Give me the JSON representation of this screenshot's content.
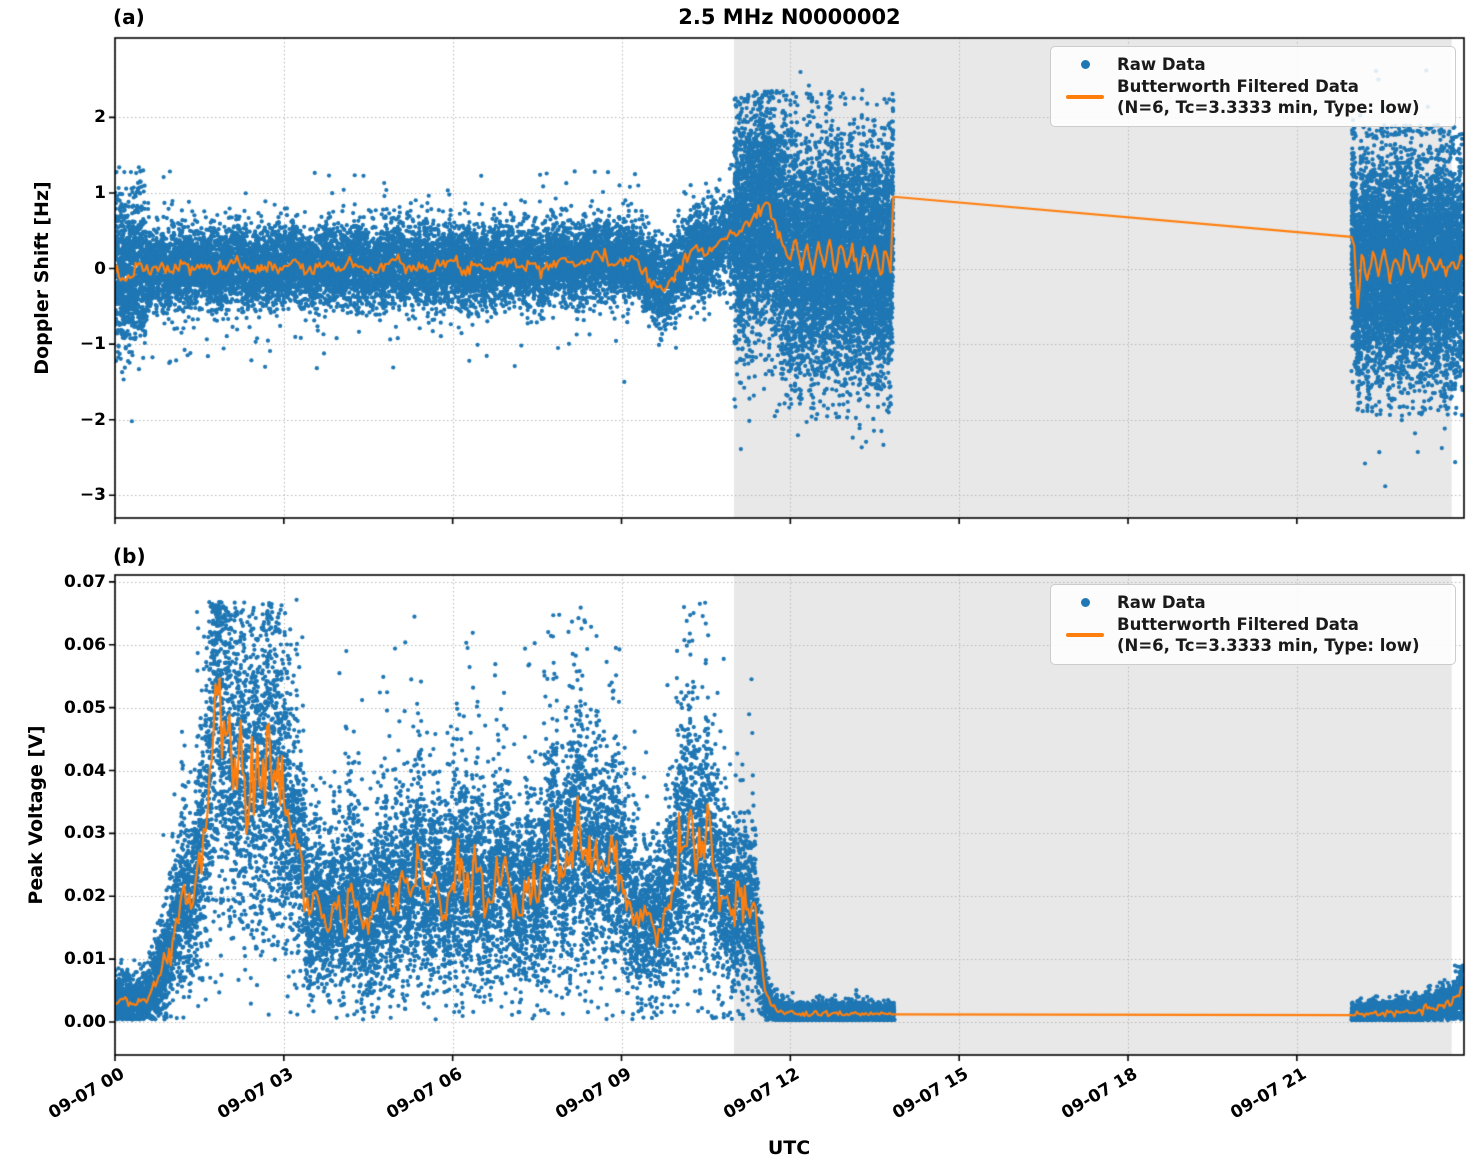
{
  "figure": {
    "title": "2.5 MHz N0000002",
    "xlabel": "UTC",
    "xticks": [
      {
        "v": 0,
        "label": "09-07 00"
      },
      {
        "v": 3,
        "label": "09-07 03"
      },
      {
        "v": 6,
        "label": "09-07 06"
      },
      {
        "v": 9,
        "label": "09-07 09"
      },
      {
        "v": 12,
        "label": "09-07 12"
      },
      {
        "v": 15,
        "label": "09-07 15"
      },
      {
        "v": 18,
        "label": "09-07 18"
      },
      {
        "v": 21,
        "label": "09-07 21"
      }
    ],
    "xlim": [
      0,
      23.97
    ]
  },
  "legend": {
    "raw_label": "Raw Data",
    "filtered_label": "Butterworth Filtered Data",
    "filtered_sublabel": "(N=6, Tc=3.3333 min, Type: low)"
  },
  "colors": {
    "raw": "#1f77b4",
    "filtered": "#ff7f0e",
    "shade": "#e8e8e8",
    "grid": "#b5b5b5",
    "spine": "#000000"
  },
  "chart_data": [
    {
      "id": "a",
      "panel_label": "(a)",
      "type": "scatter",
      "ylabel": "Doppler Shift [Hz]",
      "ylim": [
        -3.3,
        3.05
      ],
      "yticks": [
        {
          "v": 2,
          "label": "2"
        },
        {
          "v": 1,
          "label": "1"
        },
        {
          "v": 0,
          "label": "0"
        },
        {
          "v": -1,
          "label": "−1"
        },
        {
          "v": -2,
          "label": "−2"
        },
        {
          "v": -3,
          "label": "−3"
        }
      ],
      "shade_span": [
        11.0,
        23.75
      ],
      "data_gap": [
        13.83,
        21.97
      ],
      "line_noise": {
        "abs": 0.045,
        "rel": 0.0
      },
      "filtered": [
        [
          0,
          -0.07
        ],
        [
          0.2,
          -0.16
        ],
        [
          0.4,
          0.04
        ],
        [
          0.6,
          -0.06
        ],
        [
          0.8,
          0.03
        ],
        [
          1.0,
          -0.04
        ],
        [
          1.2,
          0.06
        ],
        [
          1.4,
          -0.02
        ],
        [
          1.6,
          0.05
        ],
        [
          1.8,
          -0.06
        ],
        [
          2.0,
          0.02
        ],
        [
          2.2,
          0.09
        ],
        [
          2.4,
          -0.04
        ],
        [
          2.6,
          0.05
        ],
        [
          2.8,
          -0.02
        ],
        [
          3.0,
          0.03
        ],
        [
          3.2,
          0.12
        ],
        [
          3.4,
          -0.06
        ],
        [
          3.6,
          0.02
        ],
        [
          3.8,
          0.08
        ],
        [
          4.0,
          -0.03
        ],
        [
          4.2,
          0.1
        ],
        [
          4.4,
          0.02
        ],
        [
          4.6,
          -0.05
        ],
        [
          4.8,
          0.06
        ],
        [
          5.0,
          0.12
        ],
        [
          5.2,
          0.02
        ],
        [
          5.4,
          0.08
        ],
        [
          5.6,
          -0.04
        ],
        [
          5.8,
          0.05
        ],
        [
          6.0,
          0.1
        ],
        [
          6.2,
          -0.02
        ],
        [
          6.4,
          0.06
        ],
        [
          6.6,
          0.0
        ],
        [
          6.8,
          0.08
        ],
        [
          7.0,
          0.12
        ],
        [
          7.2,
          0.02
        ],
        [
          7.4,
          0.07
        ],
        [
          7.6,
          0.0
        ],
        [
          7.8,
          0.1
        ],
        [
          8.0,
          0.14
        ],
        [
          8.2,
          0.04
        ],
        [
          8.4,
          0.12
        ],
        [
          8.6,
          0.18
        ],
        [
          8.8,
          0.05
        ],
        [
          9.0,
          0.12
        ],
        [
          9.2,
          0.16
        ],
        [
          9.4,
          -0.02
        ],
        [
          9.6,
          -0.22
        ],
        [
          9.75,
          -0.3
        ],
        [
          9.9,
          -0.12
        ],
        [
          10.1,
          0.12
        ],
        [
          10.3,
          0.28
        ],
        [
          10.5,
          0.18
        ],
        [
          10.7,
          0.32
        ],
        [
          10.9,
          0.44
        ],
        [
          11.1,
          0.5
        ],
        [
          11.3,
          0.62
        ],
        [
          11.5,
          0.8
        ],
        [
          11.6,
          0.87
        ],
        [
          11.75,
          0.55
        ],
        [
          11.9,
          0.28
        ],
        [
          12.0,
          0.12
        ],
        [
          12.1,
          0.38
        ],
        [
          12.2,
          -0.02
        ],
        [
          12.3,
          0.32
        ],
        [
          12.4,
          -0.08
        ],
        [
          12.5,
          0.35
        ],
        [
          12.6,
          0.02
        ],
        [
          12.7,
          0.38
        ],
        [
          12.8,
          -0.05
        ],
        [
          12.9,
          0.3
        ],
        [
          13.0,
          0.02
        ],
        [
          13.1,
          0.33
        ],
        [
          13.2,
          -0.06
        ],
        [
          13.3,
          0.28
        ],
        [
          13.4,
          0.0
        ],
        [
          13.5,
          0.3
        ],
        [
          13.6,
          -0.08
        ],
        [
          13.7,
          0.22
        ],
        [
          13.78,
          -0.05
        ],
        [
          13.83,
          0.95
        ],
        [
          21.97,
          0.42
        ],
        [
          22.02,
          0.3
        ],
        [
          22.08,
          -0.52
        ],
        [
          22.15,
          0.18
        ],
        [
          22.25,
          -0.15
        ],
        [
          22.35,
          0.22
        ],
        [
          22.45,
          -0.1
        ],
        [
          22.55,
          0.25
        ],
        [
          22.65,
          -0.18
        ],
        [
          22.75,
          0.12
        ],
        [
          22.85,
          -0.08
        ],
        [
          22.95,
          0.2
        ],
        [
          23.05,
          -0.05
        ],
        [
          23.15,
          0.18
        ],
        [
          23.25,
          -0.12
        ],
        [
          23.35,
          0.15
        ],
        [
          23.45,
          -0.02
        ],
        [
          23.55,
          0.12
        ],
        [
          23.65,
          -0.1
        ],
        [
          23.75,
          0.08
        ],
        [
          23.85,
          0.0
        ],
        [
          23.95,
          0.12
        ]
      ],
      "raw_segments": [
        {
          "t0": 0,
          "t1": 0.55,
          "n": 900,
          "sigma_abs": 0.5,
          "clip": [
            -1.7,
            1.35
          ]
        },
        {
          "t0": 0.55,
          "t1": 9.6,
          "n": 11000,
          "sigma_abs": 0.26,
          "clip": [
            -1.32,
            1.3
          ]
        },
        {
          "t0": 0.55,
          "t1": 9.6,
          "n": 380,
          "sigma_abs": 0.58,
          "clip": [
            -1.32,
            1.3
          ]
        },
        {
          "t0": 9.6,
          "t1": 11.0,
          "n": 1600,
          "sigma_abs": 0.3,
          "clip": [
            -1.2,
            1.4
          ]
        },
        {
          "t0": 11.0,
          "t1": 13.83,
          "n": 8500,
          "sigma_abs": 0.78,
          "clip": [
            -2.4,
            2.35
          ]
        },
        {
          "t0": 21.97,
          "t1": 23.95,
          "n": 6500,
          "sigma_abs": 0.72,
          "clip": [
            -1.95,
            1.9
          ]
        },
        {
          "t0": 21.97,
          "t1": 23.95,
          "n": 180,
          "sigma_abs": 1.15,
          "clip": [
            -2.6,
            2.62
          ]
        }
      ],
      "outliers": [
        [
          0.3,
          -2.02
        ],
        [
          9.05,
          -1.5
        ],
        [
          12.18,
          2.6
        ],
        [
          12.33,
          2.42
        ],
        [
          13.28,
          2.36
        ],
        [
          22.45,
          2.5
        ],
        [
          22.57,
          -2.88
        ],
        [
          23.1,
          -2.18
        ],
        [
          23.3,
          2.62
        ]
      ]
    },
    {
      "id": "b",
      "panel_label": "(b)",
      "type": "scatter",
      "ylabel": "Peak Voltage [V]",
      "ylim": [
        -0.00525,
        0.0711
      ],
      "yticks": [
        {
          "v": 0.07,
          "label": "0.07"
        },
        {
          "v": 0.06,
          "label": "0.06"
        },
        {
          "v": 0.05,
          "label": "0.05"
        },
        {
          "v": 0.04,
          "label": "0.04"
        },
        {
          "v": 0.03,
          "label": "0.03"
        },
        {
          "v": 0.02,
          "label": "0.02"
        },
        {
          "v": 0.01,
          "label": "0.01"
        },
        {
          "v": 0.0,
          "label": "0.00"
        }
      ],
      "shade_span": [
        11.0,
        23.75
      ],
      "data_gap": [
        13.83,
        21.97
      ],
      "line_noise": {
        "abs": 0.0001,
        "rel": 0.09
      },
      "filtered": [
        [
          0,
          0.003
        ],
        [
          0.15,
          0.0036
        ],
        [
          0.3,
          0.0028
        ],
        [
          0.45,
          0.0033
        ],
        [
          0.6,
          0.004
        ],
        [
          0.75,
          0.0065
        ],
        [
          0.9,
          0.01
        ],
        [
          1.05,
          0.014
        ],
        [
          1.2,
          0.021
        ],
        [
          1.35,
          0.018
        ],
        [
          1.5,
          0.027
        ],
        [
          1.65,
          0.034
        ],
        [
          1.75,
          0.046
        ],
        [
          1.82,
          0.052
        ],
        [
          1.9,
          0.042
        ],
        [
          2.0,
          0.046
        ],
        [
          2.1,
          0.037
        ],
        [
          2.2,
          0.043
        ],
        [
          2.3,
          0.039
        ],
        [
          2.4,
          0.036
        ],
        [
          2.5,
          0.04
        ],
        [
          2.6,
          0.037
        ],
        [
          2.7,
          0.047
        ],
        [
          2.8,
          0.037
        ],
        [
          2.9,
          0.042
        ],
        [
          3.0,
          0.035
        ],
        [
          3.1,
          0.032
        ],
        [
          3.2,
          0.03
        ],
        [
          3.3,
          0.027
        ],
        [
          3.45,
          0.017
        ],
        [
          3.6,
          0.02
        ],
        [
          3.75,
          0.015
        ],
        [
          3.9,
          0.019
        ],
        [
          4.05,
          0.016
        ],
        [
          4.2,
          0.022
        ],
        [
          4.35,
          0.017
        ],
        [
          4.5,
          0.014
        ],
        [
          4.65,
          0.019
        ],
        [
          4.8,
          0.022
        ],
        [
          4.95,
          0.017
        ],
        [
          5.1,
          0.024
        ],
        [
          5.25,
          0.02
        ],
        [
          5.4,
          0.026
        ],
        [
          5.55,
          0.019
        ],
        [
          5.7,
          0.023
        ],
        [
          5.85,
          0.017
        ],
        [
          6.0,
          0.022
        ],
        [
          6.15,
          0.026
        ],
        [
          6.3,
          0.021
        ],
        [
          6.45,
          0.024
        ],
        [
          6.6,
          0.018
        ],
        [
          6.75,
          0.022
        ],
        [
          6.9,
          0.025
        ],
        [
          7.05,
          0.02
        ],
        [
          7.2,
          0.017
        ],
        [
          7.35,
          0.023
        ],
        [
          7.5,
          0.019
        ],
        [
          7.65,
          0.025
        ],
        [
          7.8,
          0.029
        ],
        [
          7.95,
          0.023
        ],
        [
          8.1,
          0.027
        ],
        [
          8.25,
          0.032
        ],
        [
          8.4,
          0.025
        ],
        [
          8.55,
          0.029
        ],
        [
          8.7,
          0.024
        ],
        [
          8.85,
          0.028
        ],
        [
          9.0,
          0.023
        ],
        [
          9.15,
          0.019
        ],
        [
          9.3,
          0.015
        ],
        [
          9.45,
          0.017
        ],
        [
          9.6,
          0.014
        ],
        [
          9.75,
          0.017
        ],
        [
          9.9,
          0.021
        ],
        [
          10.05,
          0.027
        ],
        [
          10.2,
          0.033
        ],
        [
          10.35,
          0.026
        ],
        [
          10.5,
          0.03
        ],
        [
          10.65,
          0.024
        ],
        [
          10.8,
          0.02
        ],
        [
          10.95,
          0.017
        ],
        [
          11.1,
          0.02
        ],
        [
          11.25,
          0.018
        ],
        [
          11.35,
          0.019
        ],
        [
          11.45,
          0.011
        ],
        [
          11.55,
          0.005
        ],
        [
          11.65,
          0.0028
        ],
        [
          11.8,
          0.0016
        ],
        [
          12.1,
          0.0013
        ],
        [
          13.0,
          0.0013
        ],
        [
          13.83,
          0.0012
        ],
        [
          21.97,
          0.0011
        ],
        [
          22.1,
          0.0013
        ],
        [
          22.3,
          0.0014
        ],
        [
          22.5,
          0.0013
        ],
        [
          22.7,
          0.0015
        ],
        [
          22.9,
          0.0016
        ],
        [
          23.05,
          0.0015
        ],
        [
          23.2,
          0.0019
        ],
        [
          23.35,
          0.0024
        ],
        [
          23.45,
          0.002
        ],
        [
          23.55,
          0.0026
        ],
        [
          23.65,
          0.0031
        ],
        [
          23.75,
          0.0028
        ],
        [
          23.85,
          0.0042
        ],
        [
          23.95,
          0.0055
        ]
      ],
      "raw_segments": [
        {
          "t0": 0,
          "t1": 11.5,
          "n": 13000,
          "sigma_rel": 0.3,
          "sigma_abs": 0.0012,
          "clip": [
            0.0004,
            0.0668
          ]
        },
        {
          "t0": 0.5,
          "t1": 11.4,
          "n": 800,
          "mode": "upper",
          "cluster": true,
          "sigma_rel": 0.75,
          "sigma_abs": 0.001,
          "clip": [
            0.0004,
            0.0672
          ]
        },
        {
          "t0": 11.5,
          "t1": 13.85,
          "n": 2300,
          "sigma_rel": 0.3,
          "sigma_abs": 0.00055,
          "clip": [
            0.0003,
            0.05
          ]
        },
        {
          "t0": 21.97,
          "t1": 23.95,
          "n": 2100,
          "sigma_rel": 0.28,
          "sigma_abs": 0.0006,
          "clip": [
            0.0003,
            0.009
          ]
        }
      ],
      "outliers": [
        [
          1.02,
          0.0295
        ],
        [
          4.1,
          0.047
        ],
        [
          5.3,
          0.047
        ],
        [
          8.9,
          0.0595
        ],
        [
          10.2,
          0.0605
        ]
      ]
    }
  ]
}
